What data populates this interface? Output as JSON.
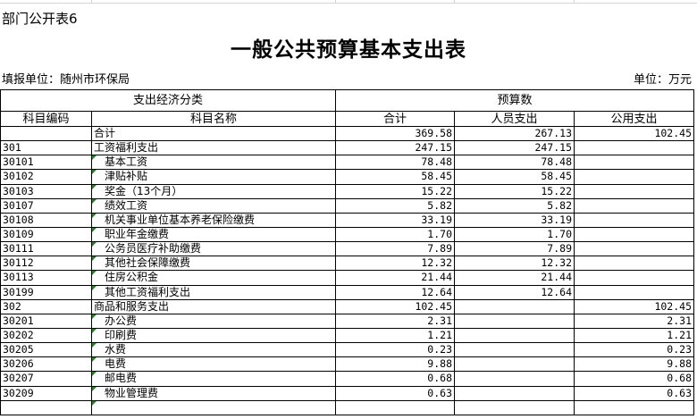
{
  "caption": "部门公开表6",
  "title": "一般公共预算基本支出表",
  "unit_left": "填报单位：随州市环保局",
  "unit_right": "单位：万元",
  "headers": {
    "group1": "支出经济分类",
    "group2": "预算数",
    "code": "科目编码",
    "name": "科目名称",
    "total": "合计",
    "personnel": "人员支出",
    "public": "公用支出"
  },
  "accent_color": "#1a8a1a",
  "rows": [
    {
      "code": "",
      "name": "合计",
      "total": "369.58",
      "personnel": "267.13",
      "public": "102.45",
      "indent": false
    },
    {
      "code": "301",
      "name": "工资福利支出",
      "total": "247.15",
      "personnel": "247.15",
      "public": "",
      "indent": false
    },
    {
      "code": "30101",
      "name": "基本工资",
      "total": "78.48",
      "personnel": "78.48",
      "public": "",
      "indent": true
    },
    {
      "code": "30102",
      "name": "津贴补贴",
      "total": "58.45",
      "personnel": "58.45",
      "public": "",
      "indent": true
    },
    {
      "code": "30103",
      "name": "奖金（13个月）",
      "total": "15.22",
      "personnel": "15.22",
      "public": "",
      "indent": true
    },
    {
      "code": "30107",
      "name": "绩效工资",
      "total": "5.82",
      "personnel": "5.82",
      "public": "",
      "indent": true
    },
    {
      "code": "30108",
      "name": "机关事业单位基本养老保险缴费",
      "total": "33.19",
      "personnel": "33.19",
      "public": "",
      "indent": true
    },
    {
      "code": "30109",
      "name": "职业年金缴费",
      "total": "1.70",
      "personnel": "1.70",
      "public": "",
      "indent": true
    },
    {
      "code": "30111",
      "name": "公务员医疗补助缴费",
      "total": "7.89",
      "personnel": "7.89",
      "public": "",
      "indent": true
    },
    {
      "code": "30112",
      "name": "其他社会保障缴费",
      "total": "12.32",
      "personnel": "12.32",
      "public": "",
      "indent": true
    },
    {
      "code": "30113",
      "name": "住房公积金",
      "total": "21.44",
      "personnel": "21.44",
      "public": "",
      "indent": true
    },
    {
      "code": "30199",
      "name": "其他工资福利支出",
      "total": "12.64",
      "personnel": "12.64",
      "public": "",
      "indent": true
    },
    {
      "code": "302",
      "name": "商品和服务支出",
      "total": "102.45",
      "personnel": "",
      "public": "102.45",
      "indent": false
    },
    {
      "code": "30201",
      "name": "办公费",
      "total": "2.31",
      "personnel": "",
      "public": "2.31",
      "indent": true
    },
    {
      "code": "30202",
      "name": "印刷费",
      "total": "1.21",
      "personnel": "",
      "public": "1.21",
      "indent": true
    },
    {
      "code": "30205",
      "name": "水费",
      "total": "0.23",
      "personnel": "",
      "public": "0.23",
      "indent": true
    },
    {
      "code": "30206",
      "name": "电费",
      "total": "9.88",
      "personnel": "",
      "public": "9.88",
      "indent": true
    },
    {
      "code": "30207",
      "name": "邮电费",
      "total": "0.68",
      "personnel": "",
      "public": "0.68",
      "indent": true
    },
    {
      "code": "30209",
      "name": "物业管理费",
      "total": "0.63",
      "personnel": "",
      "public": "0.63",
      "indent": true
    },
    {
      "code": "",
      "name": "",
      "total": "",
      "personnel": "",
      "public": "",
      "indent": true
    }
  ]
}
